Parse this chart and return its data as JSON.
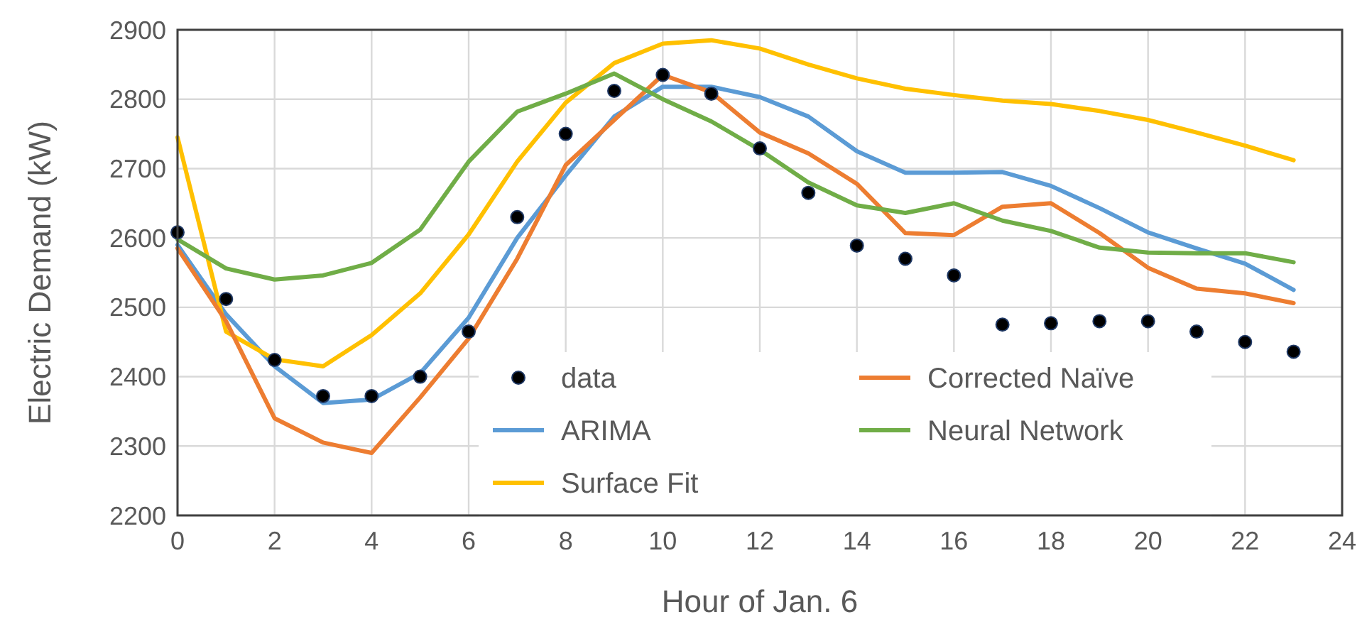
{
  "chart_data": {
    "type": "line",
    "xlabel": "Hour of Jan. 6",
    "ylabel": "Electric Demand (kW)",
    "xlim": [
      0,
      24
    ],
    "xticks": [
      0,
      2,
      4,
      6,
      8,
      10,
      12,
      14,
      16,
      18,
      20,
      22,
      24
    ],
    "ylim": [
      2200,
      2900
    ],
    "yticks": [
      2200,
      2300,
      2400,
      2500,
      2600,
      2700,
      2800,
      2900
    ],
    "x": [
      0,
      1,
      2,
      3,
      4,
      5,
      6,
      7,
      8,
      9,
      10,
      11,
      12,
      13,
      14,
      15,
      16,
      17,
      18,
      19,
      20,
      21,
      22,
      23
    ],
    "grid": true,
    "legend": "bottom",
    "line_style": "solid",
    "series": [
      {
        "name": "data",
        "type": "scatter",
        "marker": "circle",
        "color": "#000000",
        "values": [
          2608,
          2512,
          2424,
          2372,
          2372,
          2400,
          2465,
          2630,
          2750,
          2812,
          2835,
          2808,
          2729,
          2665,
          2589,
          2570,
          2546,
          2475,
          2477,
          2480,
          2480,
          2465,
          2450,
          2436
        ]
      },
      {
        "name": "ARIMA",
        "color": "#5b9bd5",
        "values": [
          2590,
          2490,
          2415,
          2362,
          2367,
          2405,
          2485,
          2600,
          2690,
          2775,
          2818,
          2818,
          2803,
          2775,
          2725,
          2694,
          2694,
          2695,
          2675,
          2643,
          2608,
          2585,
          2563,
          2525
        ]
      },
      {
        "name": "Surface Fit",
        "color": "#ffc000",
        "values": [
          2745,
          2465,
          2425,
          2415,
          2460,
          2520,
          2605,
          2710,
          2795,
          2852,
          2880,
          2885,
          2873,
          2850,
          2830,
          2815,
          2806,
          2798,
          2793,
          2783,
          2770,
          2752,
          2733,
          2712
        ]
      },
      {
        "name": "Corrected Naïve",
        "color": "#ed7d31",
        "values": [
          2585,
          2480,
          2340,
          2305,
          2290,
          2370,
          2455,
          2570,
          2705,
          2770,
          2835,
          2810,
          2752,
          2722,
          2678,
          2607,
          2604,
          2645,
          2650,
          2607,
          2557,
          2527,
          2520,
          2506
        ]
      },
      {
        "name": "Neural Network",
        "color": "#70ad47",
        "values": [
          2598,
          2556,
          2540,
          2546,
          2564,
          2612,
          2710,
          2782,
          2808,
          2837,
          2800,
          2768,
          2727,
          2680,
          2647,
          2636,
          2650,
          2625,
          2610,
          2586,
          2579,
          2578,
          2578,
          2565
        ]
      }
    ]
  }
}
